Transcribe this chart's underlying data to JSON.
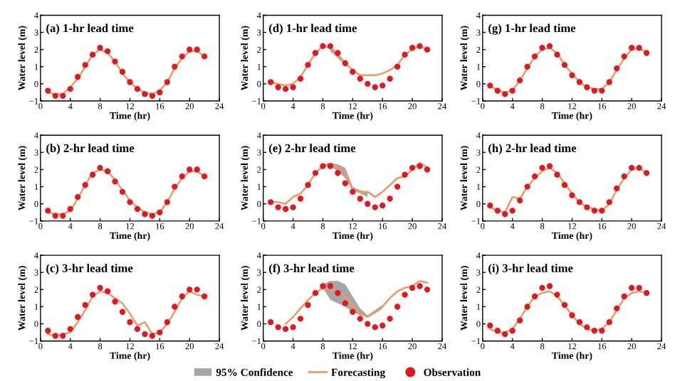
{
  "chart_data": [
    {
      "type": "line",
      "title": "(a) 1-hr lead time",
      "xlabel": "Time (hr)",
      "ylabel": "Water level (m)",
      "xlim": [
        0,
        24
      ],
      "xticks": [
        0,
        4,
        8,
        12,
        16,
        20,
        24
      ],
      "ylim": [
        -1,
        4
      ],
      "yticks": [
        -1,
        0,
        1,
        2,
        3,
        4
      ],
      "legend": "bottom",
      "series": [
        {
          "name": "Forecasting",
          "color": "#ec9a62",
          "x": [
            1,
            2,
            3,
            4,
            5,
            6,
            7,
            8,
            9,
            10,
            11,
            12,
            13,
            14,
            15,
            16,
            17,
            18,
            19,
            20,
            21,
            22
          ],
          "values": [
            -0.5,
            -0.6,
            -0.6,
            -0.2,
            0.3,
            1.0,
            1.7,
            2.0,
            1.8,
            1.3,
            0.6,
            0.1,
            -0.3,
            -0.5,
            -0.6,
            -0.4,
            0.1,
            0.9,
            1.5,
            1.9,
            1.9,
            1.6
          ]
        },
        {
          "name": "Observation",
          "type": "scatter",
          "color": "#e3171f",
          "marker": "circle",
          "x": [
            1,
            2,
            3,
            4,
            5,
            6,
            7,
            8,
            9,
            10,
            11,
            12,
            13,
            14,
            15,
            16,
            17,
            18,
            19,
            20,
            21,
            22
          ],
          "values": [
            -0.4,
            -0.7,
            -0.7,
            -0.3,
            0.4,
            1.1,
            1.7,
            2.1,
            1.9,
            1.3,
            0.7,
            0.1,
            -0.3,
            -0.6,
            -0.7,
            -0.5,
            0.1,
            1.0,
            1.6,
            2.0,
            2.0,
            1.6
          ]
        }
      ]
    },
    {
      "type": "line",
      "title": "(d) 1-hr lead time",
      "xlabel": "Time (hr)",
      "ylabel": "Water level (m)",
      "xlim": [
        0,
        24
      ],
      "xticks": [
        0,
        4,
        8,
        12,
        16,
        20,
        24
      ],
      "ylim": [
        -1,
        4
      ],
      "yticks": [
        -1,
        0,
        1,
        2,
        3,
        4
      ],
      "legend": "bottom",
      "annotations": [
        "95% Confidence"
      ],
      "series": [
        {
          "name": "Forecasting",
          "color": "#ec9a62",
          "x": [
            1,
            2,
            3,
            4,
            5,
            6,
            7,
            8,
            9,
            10,
            11,
            12,
            13,
            14,
            15,
            16,
            17,
            18,
            19,
            20,
            21,
            22
          ],
          "values": [
            0.1,
            0.0,
            -0.1,
            0.0,
            0.4,
            1.1,
            1.8,
            2.2,
            2.1,
            1.6,
            1.2,
            0.8,
            0.5,
            0.5,
            0.5,
            0.6,
            0.8,
            1.1,
            1.7,
            2.0,
            2.2,
            2.0
          ],
          "lower": [
            null,
            null,
            null,
            null,
            null,
            null,
            null,
            null,
            1.9,
            1.5,
            1.1,
            null,
            null,
            null,
            null,
            null,
            null,
            null,
            null,
            null,
            null,
            null
          ],
          "upper": [
            null,
            null,
            null,
            null,
            null,
            null,
            null,
            null,
            2.2,
            1.8,
            1.3,
            null,
            null,
            null,
            null,
            null,
            null,
            null,
            null,
            null,
            null,
            null
          ]
        },
        {
          "name": "Observation",
          "type": "scatter",
          "color": "#e3171f",
          "marker": "circle",
          "x": [
            1,
            2,
            3,
            4,
            5,
            6,
            7,
            8,
            9,
            10,
            11,
            12,
            13,
            14,
            15,
            16,
            17,
            18,
            19,
            20,
            21,
            22
          ],
          "values": [
            0.1,
            -0.2,
            -0.3,
            -0.2,
            0.3,
            1.1,
            1.8,
            2.2,
            2.2,
            1.8,
            1.2,
            0.7,
            0.3,
            0.0,
            -0.2,
            -0.1,
            0.3,
            1.0,
            1.7,
            2.1,
            2.2,
            2.0
          ]
        }
      ]
    },
    {
      "type": "line",
      "title": "(g) 1-hr lead time",
      "xlabel": "Time (hr)",
      "ylabel": "Water level (m)",
      "xlim": [
        0,
        24
      ],
      "xticks": [
        0,
        4,
        8,
        12,
        16,
        20,
        24
      ],
      "ylim": [
        -1,
        4
      ],
      "yticks": [
        -1,
        0,
        1,
        2,
        3,
        4
      ],
      "legend": "bottom",
      "series": [
        {
          "name": "Forecasting",
          "color": "#ec9a62",
          "x": [
            1,
            2,
            3,
            4,
            5,
            6,
            7,
            8,
            9,
            10,
            11,
            12,
            13,
            14,
            15,
            16,
            17,
            18,
            19,
            20,
            21,
            22
          ],
          "values": [
            -0.1,
            -0.4,
            -0.5,
            -0.4,
            0.2,
            0.9,
            1.6,
            2.0,
            2.1,
            1.8,
            1.1,
            0.6,
            0.1,
            -0.2,
            -0.3,
            -0.3,
            0.1,
            0.8,
            1.5,
            2.0,
            2.1,
            1.8
          ]
        },
        {
          "name": "Observation",
          "type": "scatter",
          "color": "#e3171f",
          "marker": "circle",
          "x": [
            1,
            2,
            3,
            4,
            5,
            6,
            7,
            8,
            9,
            10,
            11,
            12,
            13,
            14,
            15,
            16,
            17,
            18,
            19,
            20,
            21,
            22
          ],
          "values": [
            -0.1,
            -0.4,
            -0.6,
            -0.4,
            0.2,
            1.0,
            1.6,
            2.1,
            2.2,
            1.7,
            1.1,
            0.5,
            0.1,
            -0.2,
            -0.4,
            -0.4,
            0.1,
            0.9,
            1.6,
            2.1,
            2.1,
            1.8
          ]
        }
      ]
    },
    {
      "type": "line",
      "title": "(b) 2-hr lead time",
      "xlabel": "Time (hr)",
      "ylabel": "Water level (m)",
      "xlim": [
        0,
        24
      ],
      "xticks": [
        0,
        4,
        8,
        12,
        16,
        20,
        24
      ],
      "ylim": [
        -1,
        4
      ],
      "yticks": [
        -1,
        0,
        1,
        2,
        3,
        4
      ],
      "legend": "bottom",
      "series": [
        {
          "name": "Forecasting",
          "color": "#ec9a62",
          "x": [
            1,
            2,
            3,
            4,
            5,
            6,
            7,
            8,
            9,
            10,
            11,
            12,
            13,
            14,
            15,
            16,
            17,
            18,
            19,
            20,
            21,
            22
          ],
          "values": [
            -0.5,
            -0.6,
            -0.6,
            -0.4,
            0.3,
            1.1,
            1.8,
            2.0,
            1.9,
            1.4,
            0.8,
            0.2,
            -0.2,
            -0.5,
            -0.6,
            -0.5,
            0.1,
            0.9,
            1.5,
            1.9,
            1.9,
            1.6
          ]
        },
        {
          "name": "Observation",
          "type": "scatter",
          "color": "#e3171f",
          "marker": "circle",
          "x": [
            1,
            2,
            3,
            4,
            5,
            6,
            7,
            8,
            9,
            10,
            11,
            12,
            13,
            14,
            15,
            16,
            17,
            18,
            19,
            20,
            21,
            22
          ],
          "values": [
            -0.4,
            -0.7,
            -0.7,
            -0.3,
            0.4,
            1.1,
            1.7,
            2.1,
            1.9,
            1.3,
            0.7,
            0.1,
            -0.3,
            -0.6,
            -0.7,
            -0.5,
            0.1,
            1.0,
            1.6,
            2.0,
            2.0,
            1.6
          ]
        }
      ]
    },
    {
      "type": "line",
      "title": "(e) 2-hr lead time",
      "xlabel": "Time (hr)",
      "ylabel": "Water level (m)",
      "xlim": [
        0,
        24
      ],
      "xticks": [
        0,
        4,
        8,
        12,
        16,
        20,
        24
      ],
      "ylim": [
        -1,
        4
      ],
      "yticks": [
        -1,
        0,
        1,
        2,
        3,
        4
      ],
      "legend": "bottom",
      "series": [
        {
          "name": "Forecasting",
          "color": "#ec9a62",
          "x": [
            1,
            2,
            3,
            4,
            5,
            6,
            7,
            8,
            9,
            10,
            11,
            12,
            13,
            14,
            15,
            16,
            17,
            18,
            19,
            20,
            21,
            22
          ],
          "values": [
            0.1,
            0.1,
            0.0,
            0.4,
            0.6,
            1.1,
            1.8,
            2.2,
            2.3,
            2.1,
            1.8,
            0.8,
            0.7,
            0.7,
            0.4,
            0.7,
            1.1,
            1.5,
            1.6,
            2.0,
            2.4,
            2.1
          ],
          "lower": [
            null,
            null,
            null,
            null,
            null,
            null,
            null,
            2.2,
            2.2,
            1.9,
            1.5,
            0.8,
            0.6,
            0.4,
            null,
            null,
            null,
            null,
            null,
            null,
            null,
            null
          ],
          "upper": [
            null,
            null,
            null,
            null,
            null,
            null,
            null,
            2.3,
            2.4,
            2.3,
            2.1,
            1.0,
            0.8,
            0.7,
            null,
            null,
            null,
            null,
            null,
            null,
            null,
            null
          ]
        },
        {
          "name": "Observation",
          "type": "scatter",
          "color": "#e3171f",
          "marker": "circle",
          "x": [
            1,
            2,
            3,
            4,
            5,
            6,
            7,
            8,
            9,
            10,
            11,
            12,
            13,
            14,
            15,
            16,
            17,
            18,
            19,
            20,
            21,
            22
          ],
          "values": [
            0.1,
            -0.2,
            -0.3,
            -0.2,
            0.3,
            1.1,
            1.8,
            2.2,
            2.2,
            1.8,
            1.2,
            0.7,
            0.3,
            0.0,
            -0.2,
            -0.1,
            0.3,
            1.0,
            1.7,
            2.1,
            2.2,
            2.0
          ]
        }
      ]
    },
    {
      "type": "line",
      "title": "(h) 2-hr lead time",
      "xlabel": "Time (hr)",
      "ylabel": "Water level (m)",
      "xlim": [
        0,
        24
      ],
      "xticks": [
        0,
        4,
        8,
        12,
        16,
        20,
        24
      ],
      "ylim": [
        -1,
        4
      ],
      "yticks": [
        -1,
        0,
        1,
        2,
        3,
        4
      ],
      "legend": "bottom",
      "series": [
        {
          "name": "Forecasting",
          "color": "#ec9a62",
          "x": [
            1,
            2,
            3,
            4,
            5,
            6,
            7,
            8,
            9,
            10,
            11,
            12,
            13,
            14,
            15,
            16,
            17,
            18,
            19,
            20,
            21,
            22
          ],
          "values": [
            -0.2,
            -0.4,
            -0.5,
            0.4,
            0.3,
            1.0,
            1.5,
            1.9,
            2.1,
            1.8,
            1.2,
            0.6,
            0.1,
            -0.2,
            -0.3,
            -0.4,
            0.0,
            0.8,
            1.5,
            2.0,
            2.1,
            1.8
          ]
        },
        {
          "name": "Observation",
          "type": "scatter",
          "color": "#e3171f",
          "marker": "circle",
          "x": [
            1,
            2,
            3,
            4,
            5,
            6,
            7,
            8,
            9,
            10,
            11,
            12,
            13,
            14,
            15,
            16,
            17,
            18,
            19,
            20,
            21,
            22
          ],
          "values": [
            -0.1,
            -0.4,
            -0.6,
            -0.4,
            0.2,
            1.0,
            1.6,
            2.1,
            2.2,
            1.7,
            1.1,
            0.5,
            0.1,
            -0.2,
            -0.4,
            -0.4,
            0.1,
            0.9,
            1.6,
            2.1,
            2.1,
            1.8
          ]
        }
      ]
    },
    {
      "type": "line",
      "title": "(c) 3-hr lead time",
      "xlabel": "Time (hr)",
      "ylabel": "Water level (m)",
      "xlim": [
        0,
        24
      ],
      "xticks": [
        0,
        4,
        8,
        12,
        16,
        20,
        24
      ],
      "ylim": [
        -1,
        4
      ],
      "yticks": [
        -1,
        0,
        1,
        2,
        3,
        4
      ],
      "legend": "bottom",
      "series": [
        {
          "name": "Forecasting",
          "color": "#ec9a62",
          "x": [
            1,
            2,
            3,
            4,
            5,
            6,
            7,
            8,
            9,
            10,
            11,
            12,
            13,
            14,
            15,
            16,
            17,
            18,
            19,
            20,
            21,
            22
          ],
          "values": [
            -0.6,
            -0.7,
            -0.6,
            -0.5,
            0.1,
            0.8,
            1.6,
            1.9,
            1.8,
            1.5,
            1.2,
            0.6,
            -0.1,
            0.1,
            -0.6,
            -0.5,
            0.0,
            0.7,
            1.5,
            1.9,
            1.7,
            1.6
          ]
        },
        {
          "name": "Observation",
          "type": "scatter",
          "color": "#e3171f",
          "marker": "circle",
          "x": [
            1,
            2,
            3,
            4,
            5,
            6,
            7,
            8,
            9,
            10,
            11,
            12,
            13,
            14,
            15,
            16,
            17,
            18,
            19,
            20,
            21,
            22
          ],
          "values": [
            -0.4,
            -0.7,
            -0.7,
            -0.3,
            0.4,
            1.1,
            1.7,
            2.1,
            1.9,
            1.3,
            0.7,
            0.1,
            -0.3,
            -0.6,
            -0.7,
            -0.5,
            0.1,
            1.0,
            1.6,
            2.0,
            2.0,
            1.6
          ]
        }
      ]
    },
    {
      "type": "line",
      "title": "(f) 3-hr lead time",
      "xlabel": "Time (hr)",
      "ylabel": "Water level (m)",
      "xlim": [
        0,
        24
      ],
      "xticks": [
        0,
        4,
        8,
        12,
        16,
        20,
        24
      ],
      "ylim": [
        -1,
        4
      ],
      "yticks": [
        -1,
        0,
        1,
        2,
        3,
        4
      ],
      "legend": "bottom",
      "series": [
        {
          "name": "Forecasting",
          "color": "#ec9a62",
          "x": [
            3,
            4,
            5,
            6,
            7,
            8,
            9,
            10,
            11,
            12,
            13,
            14,
            15,
            16,
            17,
            18,
            19,
            20,
            21,
            22
          ],
          "values": [
            0.0,
            0.4,
            0.9,
            1.4,
            1.8,
            2.1,
            2.0,
            1.8,
            1.6,
            1.1,
            0.6,
            0.4,
            0.7,
            1.0,
            1.5,
            1.9,
            2.1,
            2.2,
            2.5,
            2.4
          ],
          "lower": [
            null,
            null,
            null,
            null,
            null,
            2.1,
            1.4,
            1.2,
            1.0,
            0.7,
            0.5,
            0.4,
            0.6,
            0.9,
            null,
            null,
            null,
            null,
            null,
            null
          ],
          "upper": [
            null,
            null,
            null,
            null,
            null,
            2.3,
            2.5,
            2.5,
            2.3,
            1.6,
            0.9,
            0.5,
            0.8,
            1.1,
            null,
            null,
            null,
            null,
            null,
            null
          ]
        },
        {
          "name": "Observation",
          "type": "scatter",
          "color": "#e3171f",
          "marker": "circle",
          "x": [
            1,
            2,
            3,
            4,
            5,
            6,
            7,
            8,
            9,
            10,
            11,
            12,
            13,
            14,
            15,
            16,
            17,
            18,
            19,
            20,
            21,
            22
          ],
          "values": [
            0.1,
            -0.2,
            -0.3,
            -0.2,
            0.3,
            1.1,
            1.8,
            2.2,
            2.2,
            1.8,
            1.2,
            0.7,
            0.3,
            0.0,
            -0.2,
            -0.1,
            0.3,
            1.0,
            1.7,
            2.1,
            2.2,
            2.0
          ]
        }
      ]
    },
    {
      "type": "line",
      "title": "(i) 3-hr lead time",
      "xlabel": "Time (hr)",
      "ylabel": "Water level (m)",
      "xlim": [
        0,
        24
      ],
      "xticks": [
        0,
        4,
        8,
        12,
        16,
        20,
        24
      ],
      "ylim": [
        -1,
        4
      ],
      "yticks": [
        -1,
        0,
        1,
        2,
        3,
        4
      ],
      "legend": "bottom",
      "series": [
        {
          "name": "Forecasting",
          "color": "#ec9a62",
          "x": [
            1,
            2,
            3,
            4,
            5,
            6,
            7,
            8,
            9,
            10,
            11,
            12,
            13,
            14,
            15,
            16,
            17,
            18,
            19,
            20,
            21,
            22
          ],
          "values": [
            -0.3,
            -0.5,
            -0.5,
            -0.3,
            0.3,
            1.0,
            1.6,
            1.8,
            1.9,
            1.6,
            1.1,
            0.5,
            0.0,
            -0.3,
            -0.4,
            -0.3,
            0.1,
            0.8,
            1.5,
            1.8,
            1.9,
            1.8
          ]
        },
        {
          "name": "Observation",
          "type": "scatter",
          "color": "#e3171f",
          "marker": "circle",
          "x": [
            1,
            2,
            3,
            4,
            5,
            6,
            7,
            8,
            9,
            10,
            11,
            12,
            13,
            14,
            15,
            16,
            17,
            18,
            19,
            20,
            21,
            22
          ],
          "values": [
            -0.1,
            -0.4,
            -0.6,
            -0.4,
            0.2,
            1.0,
            1.6,
            2.1,
            2.2,
            1.7,
            1.1,
            0.5,
            0.1,
            -0.2,
            -0.4,
            -0.4,
            0.1,
            0.9,
            1.6,
            2.1,
            2.1,
            1.8
          ]
        }
      ]
    }
  ]
}
